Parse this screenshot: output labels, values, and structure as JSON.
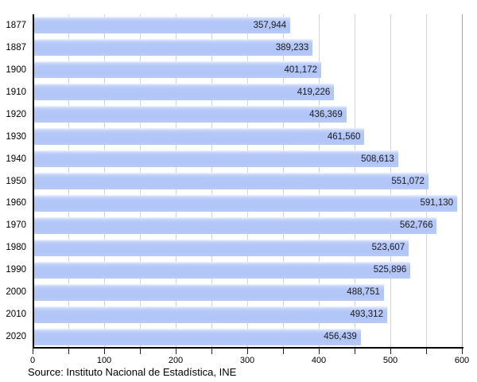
{
  "chart_data": {
    "type": "bar",
    "orientation": "horizontal",
    "title": "",
    "xlabel": "",
    "ylabel": "",
    "categories": [
      "1877",
      "1887",
      "1900",
      "1910",
      "1920",
      "1930",
      "1940",
      "1950",
      "1960",
      "1970",
      "1980",
      "1990",
      "2000",
      "2010",
      "2020"
    ],
    "values": [
      357944,
      389233,
      401172,
      419226,
      436369,
      461560,
      508613,
      551072,
      591130,
      562766,
      523607,
      525896,
      488751,
      493312,
      456439
    ],
    "value_labels": [
      "357,944",
      "389,233",
      "401,172",
      "419,226",
      "436,369",
      "461,560",
      "508,613",
      "551,072",
      "591,130",
      "562,766",
      "523,607",
      "525,896",
      "488,751",
      "493,312",
      "456,439"
    ],
    "xlim": [
      0,
      600000
    ],
    "x_tick_unit": 1000,
    "x_major_ticks": [
      0,
      100,
      200,
      300,
      400,
      500,
      600
    ],
    "x_minor_tick_step": 50,
    "grid": "vertical gridlines every 50, light gray, behind bars",
    "legend": "none",
    "source": "Source: Instituto Nacional de Estadística, INE",
    "colors": {
      "bar": "#b3c6f7",
      "bar_highlight": "#eef3fe",
      "grid": "#d4d4d4",
      "grid_end": "#a6a6a6",
      "axis": "#000000",
      "label_text": "#1c1c1c"
    }
  }
}
